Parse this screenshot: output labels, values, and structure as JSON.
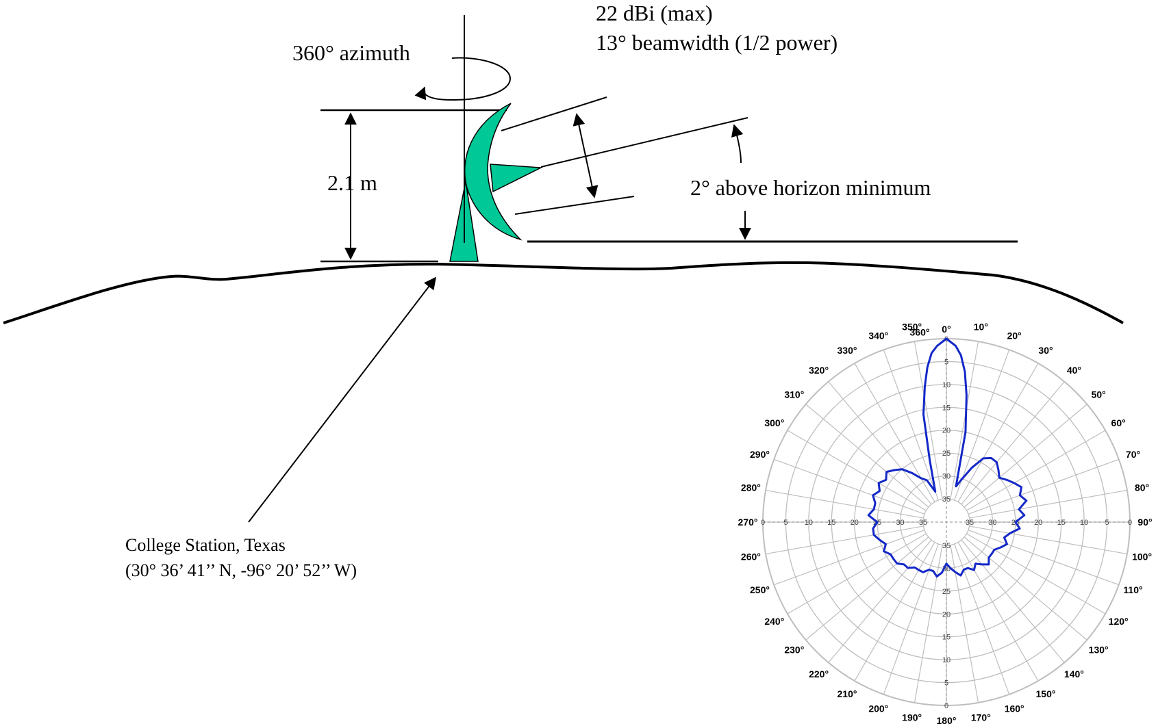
{
  "annotations": {
    "gain": "22 dBi (max)",
    "beamwidth": "13° beamwidth (1/2 power)",
    "azimuth": "360° azimuth",
    "height": "2.1 m",
    "elevation": "2° above horizon minimum",
    "location_name": "College Station, Texas",
    "location_coords": "(30° 36’ 41’’ N, -96° 20’ 52’’ W)"
  },
  "colors": {
    "antenna": "#00C896",
    "pattern": "#1428C8",
    "grid": "#BEBEBE",
    "line": "#000000"
  },
  "chart_data": {
    "type": "polar",
    "title": "",
    "angle_unit": "degrees",
    "angle_labels": [
      "0°",
      "10°",
      "20°",
      "30°",
      "40°",
      "50°",
      "60°",
      "70°",
      "80°",
      "90°",
      "100°",
      "110°",
      "120°",
      "130°",
      "140°",
      "150°",
      "160°",
      "170°",
      "180°",
      "190°",
      "200°",
      "210°",
      "220°",
      "230°",
      "240°",
      "250°",
      "260°",
      "270°",
      "280°",
      "290°",
      "300°",
      "310°",
      "320°",
      "330°",
      "340°",
      "350°",
      "360°"
    ],
    "radial_labels": [
      "0",
      "5",
      "10",
      "15",
      "20",
      "25",
      "30",
      "35"
    ],
    "radial_axis": "dB below maximum (0 at outer ring, 35 at inner ring)",
    "series": [
      {
        "angles": [
          0,
          3,
          5,
          7,
          9,
          12,
          15,
          20,
          25,
          30,
          35,
          40,
          45,
          50,
          55,
          60,
          65,
          70,
          75,
          80,
          85,
          90,
          95,
          100,
          105,
          110,
          115,
          120,
          125,
          130,
          135,
          140,
          145,
          150,
          155,
          160,
          165,
          170,
          175,
          180,
          185,
          190,
          195,
          200,
          205,
          210,
          215,
          220,
          225,
          230,
          235,
          240,
          245,
          250,
          255,
          260,
          265,
          270,
          275,
          280,
          285,
          290,
          295,
          300,
          305,
          310,
          315,
          320,
          325,
          330,
          335,
          340,
          345,
          348,
          351,
          353,
          355,
          357,
          360
        ],
        "values": [
          0,
          1.5,
          3.5,
          7,
          12,
          20,
          32,
          30,
          27,
          24,
          23,
          23,
          24,
          25,
          24,
          23,
          22,
          23,
          22,
          24,
          23,
          25,
          24,
          26,
          27,
          26,
          27,
          28,
          28,
          28,
          27,
          28,
          29,
          28,
          29,
          29,
          28,
          29,
          30,
          31,
          29,
          28,
          29,
          29,
          28,
          28,
          28,
          27,
          27,
          26,
          26,
          26,
          25,
          26,
          25,
          24,
          24,
          25,
          23,
          24,
          24,
          23,
          24,
          23,
          24,
          23,
          24,
          25,
          27,
          29,
          30,
          33,
          26,
          16,
          10,
          6,
          3,
          1.5,
          0
        ]
      }
    ]
  }
}
